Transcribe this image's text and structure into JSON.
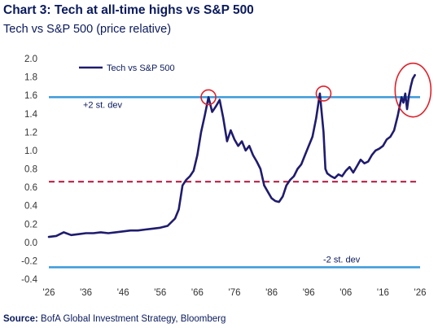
{
  "header": {
    "title": "Chart 3: Tech at all-time highs vs S&P 500",
    "subtitle": "Tech vs S&P 500 (price relative)"
  },
  "footer": {
    "source_label": "Source:",
    "source_text": "BofA Global Investment Strategy, Bloomberg"
  },
  "chart_data": {
    "type": "line",
    "xlim": [
      1926,
      2026
    ],
    "ylim": [
      -0.4,
      2.0
    ],
    "x_tick_labels": [
      "'26",
      "'36",
      "'46",
      "'56",
      "'66",
      "'76",
      "'86",
      "'96",
      "'06",
      "'16",
      "'26"
    ],
    "y_tick_labels": [
      "2.0",
      "1.8",
      "1.6",
      "1.4",
      "1.2",
      "1.0",
      "0.8",
      "0.6",
      "0.4",
      "0.2",
      "0.0",
      "-0.2",
      "-0.4"
    ],
    "grid": false,
    "legend_position": "top-left",
    "series": [
      {
        "name": "Tech vs  S&P 500",
        "color": "#1f1c6e",
        "x": [
          1926,
          1928,
          1930,
          1932,
          1934,
          1936,
          1938,
          1940,
          1942,
          1944,
          1946,
          1948,
          1950,
          1952,
          1954,
          1956,
          1958,
          1960,
          1961,
          1962,
          1963,
          1964,
          1965,
          1966,
          1967,
          1968,
          1969,
          1970,
          1971,
          1972,
          1973,
          1974,
          1975,
          1976,
          1977,
          1978,
          1979,
          1980,
          1981,
          1982,
          1983,
          1984,
          1985,
          1986,
          1987,
          1988,
          1989,
          1990,
          1991,
          1992,
          1993,
          1994,
          1995,
          1996,
          1997,
          1998,
          1999,
          2000,
          2000.5,
          2001,
          2002,
          2003,
          2004,
          2005,
          2006,
          2007,
          2008,
          2009,
          2010,
          2011,
          2012,
          2013,
          2014,
          2015,
          2016,
          2017,
          2018,
          2019,
          2020,
          2021,
          2021.5,
          2022,
          2022.5,
          2023,
          2023.5,
          2024,
          2024.6
        ],
        "values": [
          0.06,
          0.07,
          0.11,
          0.08,
          0.09,
          0.1,
          0.1,
          0.11,
          0.1,
          0.11,
          0.12,
          0.13,
          0.13,
          0.14,
          0.15,
          0.16,
          0.18,
          0.26,
          0.36,
          0.62,
          0.68,
          0.72,
          0.78,
          0.95,
          1.2,
          1.38,
          1.58,
          1.42,
          1.48,
          1.55,
          1.35,
          1.1,
          1.22,
          1.12,
          1.05,
          1.1,
          1.0,
          1.05,
          0.95,
          0.88,
          0.8,
          0.62,
          0.55,
          0.48,
          0.45,
          0.44,
          0.5,
          0.62,
          0.68,
          0.72,
          0.8,
          0.85,
          0.95,
          1.05,
          1.15,
          1.35,
          1.62,
          1.2,
          0.8,
          0.75,
          0.72,
          0.7,
          0.74,
          0.72,
          0.78,
          0.82,
          0.76,
          0.83,
          0.9,
          0.86,
          0.88,
          0.95,
          1.0,
          1.02,
          1.05,
          1.12,
          1.15,
          1.22,
          1.38,
          1.58,
          1.52,
          1.62,
          1.45,
          1.6,
          1.7,
          1.78,
          1.82
        ]
      }
    ],
    "reference_lines": [
      {
        "y": 1.58,
        "label": "+2 st. dev",
        "style": "solid",
        "color": "#3a9ad9"
      },
      {
        "y": 0.66,
        "label": "",
        "style": "dashed",
        "color": "#b5123a"
      },
      {
        "y": -0.27,
        "label": "-2 st. dev",
        "style": "solid",
        "color": "#3a9ad9"
      }
    ],
    "highlight_circles": [
      {
        "x": 1969,
        "y": 1.58
      },
      {
        "x": 2000,
        "y": 1.62
      },
      {
        "x": 2023,
        "y": 1.64
      }
    ]
  }
}
